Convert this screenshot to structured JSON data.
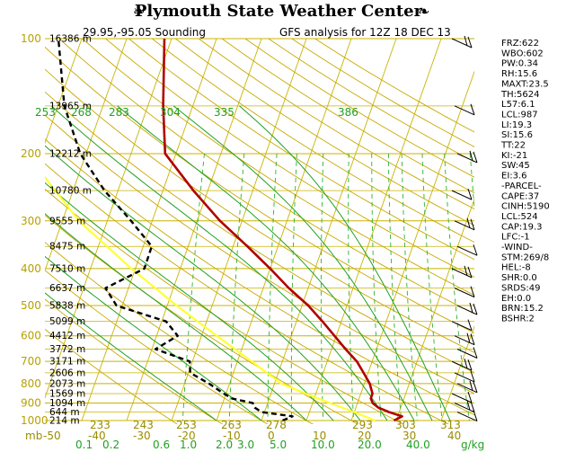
{
  "header": {
    "title": "Plymouth State Weather Center",
    "sounding_location": "29.95,-95.05 Sounding",
    "analysis_label": "GFS analysis for 12Z 18 DEC 13"
  },
  "pressure_labels": [
    "100",
    "200",
    "300",
    "400",
    "500",
    "600",
    "700",
    "800",
    "900",
    "1000"
  ],
  "height_labels": [
    {
      "p": 100,
      "text": "16386 m"
    },
    {
      "p": 150,
      "text": "13965 m"
    },
    {
      "p": 200,
      "text": "12212 m"
    },
    {
      "p": 250,
      "text": "10780 m"
    },
    {
      "p": 300,
      "text": "9555 m"
    },
    {
      "p": 350,
      "text": "8475 m"
    },
    {
      "p": 400,
      "text": "7510 m"
    },
    {
      "p": 450,
      "text": "6637 m"
    },
    {
      "p": 500,
      "text": "5838 m"
    },
    {
      "p": 550,
      "text": "5099 m"
    },
    {
      "p": 600,
      "text": "4412 m"
    },
    {
      "p": 650,
      "text": "3772 m"
    },
    {
      "p": 700,
      "text": "3171 m"
    },
    {
      "p": 750,
      "text": "2606 m"
    },
    {
      "p": 800,
      "text": "2073 m"
    },
    {
      "p": 850,
      "text": "1569 m"
    },
    {
      "p": 900,
      "text": "1094 m"
    },
    {
      "p": 950,
      "text": "644 m"
    },
    {
      "p": 1000,
      "text": "214 m"
    }
  ],
  "theta_e_labels_top": [
    "253",
    "268",
    "283",
    "304",
    "335",
    "386"
  ],
  "theta_e_labels_bottom": [
    "233",
    "243",
    "253",
    "263",
    "278",
    "293",
    "303",
    "313"
  ],
  "temperature_axis": {
    "unit": "mb",
    "ticks": [
      "-50",
      "-40",
      "-30",
      "-20",
      "-10",
      "0",
      "10",
      "20",
      "30",
      "40"
    ]
  },
  "mixing_ratio_axis": {
    "unit": "g/kg",
    "ticks": [
      "0.1",
      "0.2",
      "0.6",
      "1.0",
      "2.0",
      "3.0",
      "5.0",
      "10.0",
      "20.0",
      "40.0"
    ]
  },
  "stats": [
    "FRZ:622",
    "WBO:602",
    "PW:0.34",
    "RH:15.6",
    "MAXT:23.5",
    "TH:5624",
    "L57:6.1",
    "LCL:987",
    "LI:19.3",
    "SI:15.6",
    "TT:22",
    "KI:-21",
    "SW:45",
    "EI:3.6",
    "-PARCEL-",
    "CAPE:37",
    "CINH:5190",
    "LCL:524",
    "CAP:19.3",
    "LFC:-1",
    "-WIND-",
    "STM:269/8",
    "HEL:-8",
    "SHR:0.0",
    "SRDS:49",
    "EH:0.0",
    "BRN:15.2",
    "BSHR:2"
  ],
  "colors": {
    "background": "#ffffff",
    "isobar_isotherm_grid": "#c8b400",
    "dry_adiabat": "#c8a800",
    "moist_adiabat": "#22a022",
    "mixing_ratio": "#30b030",
    "temperature_profile": "#b00000",
    "dewpoint_profile": "#000000",
    "parcel_path": "#ffff33"
  },
  "chart_data": {
    "type": "line",
    "chart_kind": "skew-T log-P sounding",
    "y_axis": {
      "quantity": "pressure",
      "unit": "mb",
      "scale": "log",
      "range": [
        1000,
        100
      ]
    },
    "x_axis": {
      "quantity": "temperature",
      "unit": "C",
      "skewed": true,
      "range": [
        -50,
        45
      ]
    },
    "series": [
      {
        "name": "temperature",
        "color": "#b00000",
        "points": [
          [
            1000,
            19.5
          ],
          [
            975,
            21.0
          ],
          [
            950,
            17.7
          ],
          [
            925,
            15.0
          ],
          [
            900,
            13.4
          ],
          [
            875,
            12.6
          ],
          [
            850,
            12.6
          ],
          [
            800,
            11.2
          ],
          [
            750,
            9.0
          ],
          [
            700,
            6.6
          ],
          [
            650,
            3.1
          ],
          [
            600,
            -0.4
          ],
          [
            550,
            -4.2
          ],
          [
            500,
            -8.6
          ],
          [
            450,
            -14.3
          ],
          [
            400,
            -20.0
          ],
          [
            350,
            -26.8
          ],
          [
            300,
            -34.9
          ],
          [
            250,
            -43.2
          ],
          [
            200,
            -52.4
          ],
          [
            150,
            -56.6
          ],
          [
            100,
            -61.6
          ]
        ]
      },
      {
        "name": "dewpoint",
        "color": "#000000",
        "points": [
          [
            1000,
            -5.3
          ],
          [
            975,
            -3.4
          ],
          [
            950,
            -10.7
          ],
          [
            925,
            -12.5
          ],
          [
            900,
            -13.3
          ],
          [
            875,
            -18.3
          ],
          [
            850,
            -20.5
          ],
          [
            800,
            -24.6
          ],
          [
            750,
            -29.6
          ],
          [
            700,
            -30.6
          ],
          [
            650,
            -39.2
          ],
          [
            600,
            -35.3
          ],
          [
            550,
            -39.0
          ],
          [
            500,
            -51.3
          ],
          [
            450,
            -55.1
          ],
          [
            400,
            -48.0
          ],
          [
            350,
            -48.1
          ],
          [
            300,
            -54.7
          ],
          [
            250,
            -63.0
          ],
          [
            200,
            -71.3
          ],
          [
            150,
            -78.6
          ],
          [
            100,
            -85.2
          ]
        ]
      },
      {
        "name": "parcel",
        "color": "#ffff33",
        "points": [
          [
            1000,
            15.3
          ],
          [
            950,
            9.9
          ],
          [
            900,
            3.9
          ],
          [
            850,
            -2.3
          ],
          [
            800,
            -8.5
          ],
          [
            700,
            -16.8
          ],
          [
            600,
            -26.6
          ],
          [
            500,
            -37.9
          ],
          [
            400,
            -50.9
          ],
          [
            300,
            -66.3
          ],
          [
            200,
            -83.3
          ],
          [
            150,
            -90.6
          ],
          [
            128,
            -95.0
          ]
        ]
      }
    ]
  }
}
